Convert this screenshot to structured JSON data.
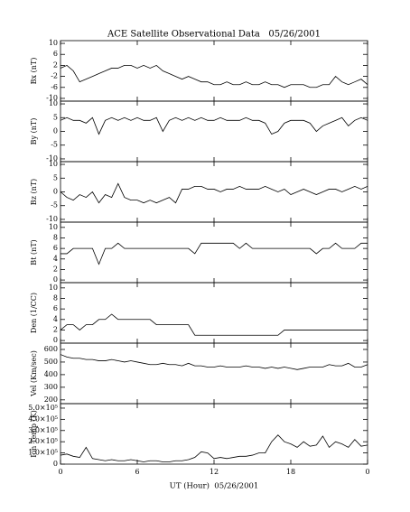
{
  "chart_data": {
    "type": "line",
    "title": "ACE Satellite Observational Data   05/26/2001",
    "xlabel": "UT (Hour)  05/26/2001",
    "color": "#000000",
    "xlim": [
      0,
      24
    ],
    "xticks": [
      0,
      6,
      12,
      18,
      {
        "value": 24,
        "label": "0"
      }
    ],
    "x": [
      0,
      0.5,
      1,
      1.5,
      2,
      2.5,
      3,
      3.5,
      4,
      4.5,
      5,
      5.5,
      6,
      6.5,
      7,
      7.5,
      8,
      8.5,
      9,
      9.5,
      10,
      10.5,
      11,
      11.5,
      12,
      12.5,
      13,
      13.5,
      14,
      14.5,
      15,
      15.5,
      16,
      16.5,
      17,
      17.5,
      18,
      18.5,
      19,
      19.5,
      20,
      20.5,
      21,
      21.5,
      22,
      22.5,
      23,
      23.5,
      24
    ],
    "panels": [
      {
        "ylabel": "Bx (nT)",
        "ylim": [
          -11,
          11
        ],
        "yticks": [
          10,
          6,
          2,
          -2,
          -6,
          -10
        ],
        "values": [
          1,
          2,
          0,
          -4,
          -3,
          -2,
          -1,
          0,
          1,
          1,
          2,
          2,
          1,
          2,
          1,
          2,
          0,
          -1,
          -2,
          -3,
          -2,
          -3,
          -4,
          -4,
          -5,
          -5,
          -4,
          -5,
          -5,
          -4,
          -5,
          -5,
          -4,
          -5,
          -5,
          -6,
          -5,
          -5,
          -5,
          -6,
          -6,
          -5,
          -5,
          -2,
          -4,
          -5,
          -4,
          -3,
          -5
        ]
      },
      {
        "ylabel": "By (nT)",
        "ylim": [
          -11,
          11
        ],
        "yticks": [
          10,
          5,
          0,
          -5,
          -10
        ],
        "values": [
          4,
          5,
          4,
          4,
          3,
          5,
          -1,
          4,
          5,
          4,
          5,
          4,
          5,
          4,
          4,
          5,
          0,
          4,
          5,
          4,
          5,
          4,
          5,
          4,
          4,
          5,
          4,
          4,
          4,
          5,
          4,
          4,
          3,
          -1,
          0,
          3,
          4,
          4,
          4,
          3,
          0,
          2,
          3,
          4,
          5,
          2,
          4,
          5,
          4
        ]
      },
      {
        "ylabel": "Bz (nT)",
        "ylim": [
          -11,
          11
        ],
        "yticks": [
          10,
          5,
          0,
          -5,
          -10
        ],
        "values": [
          0,
          -2,
          -3,
          -1,
          -2,
          0,
          -4,
          -1,
          -2,
          3,
          -2,
          -3,
          -3,
          -4,
          -3,
          -4,
          -3,
          -2,
          -4,
          1,
          1,
          2,
          2,
          1,
          1,
          0,
          1,
          1,
          2,
          1,
          1,
          1,
          2,
          1,
          0,
          1,
          -1,
          0,
          1,
          0,
          -1,
          0,
          1,
          1,
          0,
          1,
          2,
          1,
          2
        ]
      },
      {
        "ylabel": "Bt (nT)",
        "ylim": [
          -0.5,
          11
        ],
        "yticks": [
          10,
          8,
          6,
          4,
          2,
          0
        ],
        "values": [
          5,
          5,
          6,
          6,
          6,
          6,
          3,
          6,
          6,
          7,
          6,
          6,
          6,
          6,
          6,
          6,
          6,
          6,
          6,
          6,
          6,
          5,
          7,
          7,
          7,
          7,
          7,
          7,
          6,
          7,
          6,
          6,
          6,
          6,
          6,
          6,
          6,
          6,
          6,
          6,
          5,
          6,
          6,
          7,
          6,
          6,
          6,
          7,
          7
        ]
      },
      {
        "ylabel": "Den (1/CC)",
        "ylim": [
          -0.5,
          11
        ],
        "yticks": [
          10,
          8,
          6,
          4,
          2,
          0
        ],
        "values": [
          2,
          3,
          3,
          2,
          3,
          3,
          4,
          4,
          5,
          4,
          4,
          4,
          4,
          4,
          4,
          3,
          3,
          3,
          3,
          3,
          3,
          1,
          1,
          1,
          1,
          1,
          1,
          1,
          1,
          1,
          1,
          1,
          1,
          1,
          1,
          2,
          2,
          2,
          2,
          2,
          2,
          2,
          2,
          2,
          2,
          2,
          2,
          2,
          2
        ]
      },
      {
        "ylabel": "Vel (Km/sec)",
        "ylim": [
          170,
          650
        ],
        "yticks": [
          600,
          500,
          400,
          300,
          200
        ],
        "values": [
          560,
          540,
          530,
          530,
          520,
          520,
          510,
          510,
          520,
          510,
          500,
          510,
          500,
          490,
          480,
          480,
          490,
          480,
          480,
          470,
          490,
          470,
          470,
          460,
          460,
          470,
          460,
          460,
          460,
          470,
          460,
          460,
          450,
          460,
          450,
          460,
          450,
          440,
          450,
          460,
          460,
          460,
          480,
          470,
          470,
          490,
          460,
          460,
          480
        ]
      },
      {
        "ylabel": "Ion Temp (K)",
        "ylim": [
          0,
          540000
        ],
        "yticks": [
          {
            "value": 500000,
            "label": "5.0×10⁵"
          },
          {
            "value": 400000,
            "label": "4.0×10⁵"
          },
          {
            "value": 300000,
            "label": "3.0×10⁵"
          },
          {
            "value": 200000,
            "label": "2.0×10⁵"
          },
          {
            "value": 100000,
            "label": "1.0×10⁵"
          },
          0
        ],
        "values": [
          80000,
          90000,
          70000,
          60000,
          150000,
          50000,
          40000,
          30000,
          40000,
          30000,
          30000,
          40000,
          30000,
          20000,
          30000,
          30000,
          20000,
          20000,
          30000,
          30000,
          40000,
          60000,
          110000,
          100000,
          50000,
          60000,
          50000,
          60000,
          70000,
          70000,
          80000,
          100000,
          100000,
          200000,
          260000,
          200000,
          180000,
          150000,
          200000,
          160000,
          170000,
          250000,
          150000,
          200000,
          180000,
          150000,
          220000,
          160000,
          170000
        ]
      }
    ]
  }
}
